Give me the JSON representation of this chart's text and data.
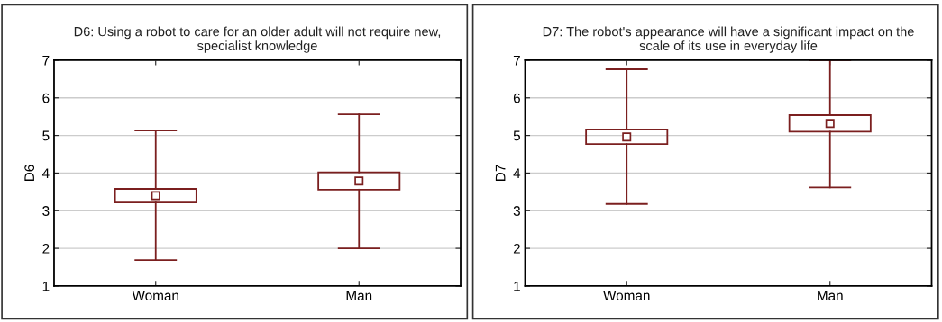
{
  "chart_data": [
    {
      "type": "box",
      "title": "D6: Using a robot to care for an older adult will not require new,\nspecialist knowledge",
      "ylabel": "D6",
      "categories": [
        "Woman",
        "Man"
      ],
      "color": "#7b1f1f",
      "marker": "square",
      "boxes": [
        {
          "low": 1.69,
          "q1": 3.22,
          "q3": 3.58,
          "high": 5.13,
          "mean": 3.4
        },
        {
          "low": 2.0,
          "q1": 3.56,
          "q3": 4.02,
          "high": 5.56,
          "mean": 3.79
        }
      ],
      "ylim": [
        1,
        7
      ],
      "yticks": [
        1,
        2,
        3,
        4,
        5,
        6,
        7
      ],
      "grid": "y"
    },
    {
      "type": "box",
      "title": "D7: The robot's appearance will have a significant impact on the\nscale of its use in everyday life",
      "ylabel": "D7",
      "categories": [
        "Woman",
        "Man"
      ],
      "color": "#7b1f1f",
      "marker": "square",
      "boxes": [
        {
          "low": 3.18,
          "q1": 4.77,
          "q3": 5.16,
          "high": 6.76,
          "mean": 4.96
        },
        {
          "low": 3.62,
          "q1": 5.1,
          "q3": 5.54,
          "high": 7.0,
          "mean": 5.32
        }
      ],
      "ylim": [
        1,
        7
      ],
      "yticks": [
        1,
        2,
        3,
        4,
        5,
        6,
        7
      ],
      "grid": "y"
    }
  ]
}
